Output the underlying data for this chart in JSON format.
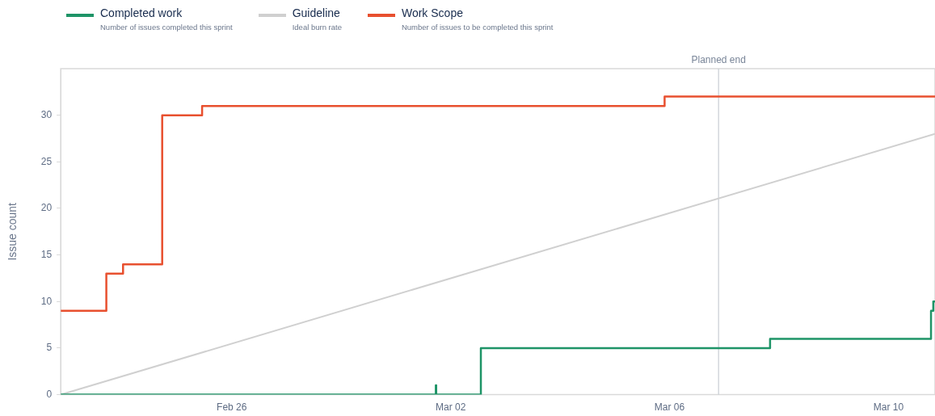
{
  "chart_data": {
    "type": "step",
    "ylabel": "Issue count",
    "xlim": [
      "--02-22T21:00",
      "--03-10T20:25"
    ],
    "xticks": [
      {
        "value": "--02-26",
        "label": "Feb 26"
      },
      {
        "value": "--03-02",
        "label": "Mar 02"
      },
      {
        "value": "--03-06",
        "label": "Mar 06"
      },
      {
        "value": "--03-10",
        "label": "Mar 10"
      }
    ],
    "ylim": [
      0,
      35
    ],
    "yticks": [
      0,
      5,
      10,
      15,
      20,
      25,
      30
    ],
    "grid": false,
    "legend": "top",
    "series": [
      {
        "name": "Completed work",
        "type": "step",
        "color": "#1e9467",
        "x": [
          "--02-22T21:00",
          "--03-01T17:30",
          "--03-01T17:40",
          "--03-02T13:15",
          "--03-07T20:05",
          "--03-10T18:40",
          "--03-10T19:40",
          "--03-10T20:25"
        ],
        "values": [
          0,
          1,
          0,
          5,
          6,
          9,
          10,
          10
        ]
      },
      {
        "name": "Guideline",
        "type": "line",
        "color": "#d0d0d0",
        "x": [
          "--02-22T21:00",
          "--03-10T20:25"
        ],
        "values": [
          0,
          28
        ]
      },
      {
        "name": "Work Scope",
        "type": "step",
        "color": "#e8502f",
        "x": [
          "--02-22T21:00",
          "--02-23T17:00",
          "--02-24T00:20",
          "--02-24T17:30",
          "--02-25T11:00",
          "--03-05T21:50",
          "--03-10T20:25"
        ],
        "values": [
          9,
          13,
          14,
          30,
          31,
          32,
          32
        ]
      }
    ],
    "annotations": [
      "Number of issues completed this sprint",
      "Ideal burn rate",
      "Number of issues to be completed this sprint"
    ],
    "ref_lines": [
      {
        "axis": "x",
        "value": "--03-06T21:30",
        "label": "Planned end",
        "color": "#c8cdd4"
      }
    ]
  }
}
